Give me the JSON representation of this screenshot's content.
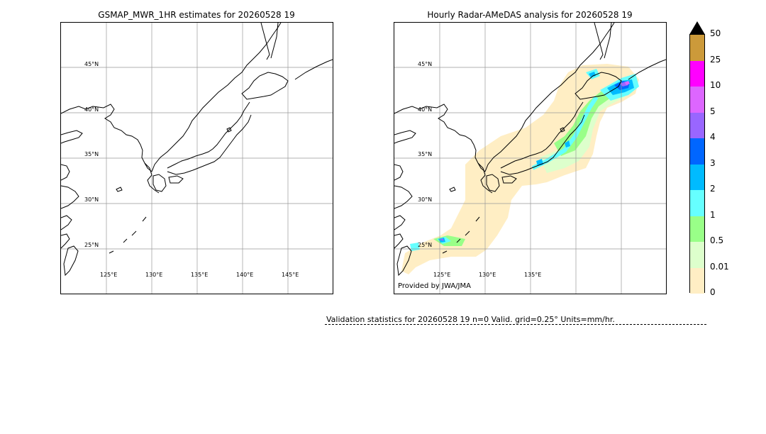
{
  "left_panel": {
    "title": "GSMAP_MWR_1HR estimates for 20260528 19",
    "lat_labels": [
      "45°N",
      "40°N",
      "35°N",
      "30°N",
      "25°N"
    ],
    "lon_labels": [
      "125°E",
      "130°E",
      "135°E",
      "140°E",
      "145°E"
    ]
  },
  "right_panel": {
    "title": "Hourly Radar-AMeDAS analysis for 20260528 19",
    "lat_labels": [
      "45°N",
      "40°N",
      "35°N",
      "30°N",
      "25°N"
    ],
    "lon_labels": [
      "125°E",
      "130°E",
      "135°E"
    ],
    "credit": "Provided by JWA/JMA"
  },
  "colorbar": {
    "labels": [
      "50",
      "25",
      "10",
      "5",
      "4",
      "3",
      "2",
      "1",
      "0.5",
      "0.01",
      "0"
    ],
    "colors": [
      "#cc9a3a",
      "#ff00ff",
      "#dd66ff",
      "#9966ff",
      "#0066ff",
      "#00bbff",
      "#66ffff",
      "#99ff88",
      "#ddffcc",
      "#ffeec4"
    ],
    "over_color": "#000000"
  },
  "validation": {
    "text": "Validation statistics for 20260528 19  n=0 Valid. grid=0.25° Units=mm/hr."
  }
}
